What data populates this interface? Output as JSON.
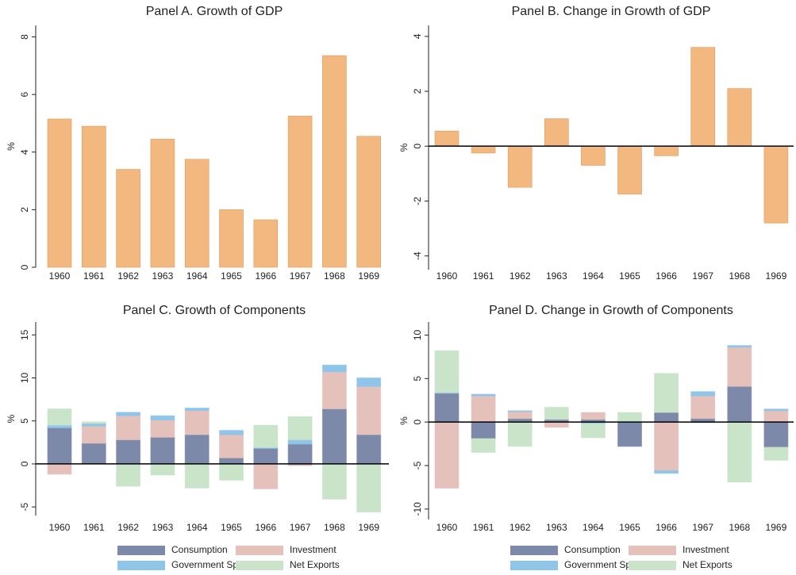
{
  "chart_data": [
    {
      "type": "bar",
      "title": "Panel A. Growth of GDP",
      "ylabel": "%",
      "color": "#f2b880",
      "categories": [
        "1960",
        "1961",
        "1962",
        "1963",
        "1964",
        "1965",
        "1966",
        "1967",
        "1968",
        "1969"
      ],
      "values": [
        5.15,
        4.9,
        3.4,
        4.45,
        3.75,
        2.0,
        1.65,
        5.25,
        7.35,
        4.55
      ],
      "ylim": [
        0,
        8.4
      ],
      "yticks": [
        0,
        2,
        4,
        6,
        8
      ]
    },
    {
      "type": "bar",
      "title": "Panel B. Change in Growth of GDP",
      "ylabel": "%",
      "color": "#f2b880",
      "categories": [
        "1960",
        "1961",
        "1962",
        "1963",
        "1964",
        "1965",
        "1966",
        "1967",
        "1968",
        "1969"
      ],
      "values": [
        0.55,
        -0.25,
        -1.5,
        1.0,
        -0.7,
        -1.75,
        -0.35,
        3.6,
        2.1,
        -2.8
      ],
      "ylim": [
        -4.5,
        4.4
      ],
      "yticks": [
        -4,
        -2,
        0,
        2,
        4
      ]
    },
    {
      "type": "stacked_bar",
      "title": "Panel C. Growth of Components",
      "ylabel": "%",
      "legend": "bottom",
      "categories": [
        "1960",
        "1961",
        "1962",
        "1963",
        "1964",
        "1965",
        "1966",
        "1967",
        "1968",
        "1969"
      ],
      "series": [
        {
          "name": "Consumption",
          "color": "#7d89a8",
          "values": [
            4.2,
            2.4,
            2.8,
            3.1,
            3.4,
            0.7,
            1.8,
            2.3,
            6.4,
            3.4
          ]
        },
        {
          "name": "Investment",
          "color": "#e5c1bc",
          "values": [
            -1.2,
            2.0,
            2.8,
            2.0,
            2.8,
            2.7,
            -2.9,
            -0.2,
            4.3,
            5.6
          ]
        },
        {
          "name": "Government Spending",
          "color": "#90c5ea",
          "values": [
            0.3,
            0.3,
            0.4,
            0.5,
            0.3,
            0.5,
            0.1,
            0.5,
            0.8,
            1.0
          ]
        },
        {
          "name": "Net Exports",
          "color": "#c9e4c8",
          "values": [
            1.9,
            0.2,
            -2.6,
            -1.3,
            -2.8,
            -1.9,
            2.6,
            2.7,
            -4.1,
            -5.6
          ]
        }
      ],
      "ylim": [
        -6,
        16.5
      ],
      "yticks": [
        -5,
        0,
        5,
        10,
        15
      ]
    },
    {
      "type": "stacked_bar",
      "title": "Panel D. Change in Growth of Components",
      "ylabel": "%",
      "legend": "bottom",
      "categories": [
        "1960",
        "1961",
        "1962",
        "1963",
        "1964",
        "1965",
        "1966",
        "1967",
        "1968",
        "1969"
      ],
      "series": [
        {
          "name": "Consumption",
          "color": "#7d89a8",
          "values": [
            3.3,
            -1.9,
            0.4,
            0.3,
            0.3,
            -2.8,
            1.1,
            0.4,
            4.1,
            -2.9
          ]
        },
        {
          "name": "Investment",
          "color": "#e5c1bc",
          "values": [
            -7.6,
            3.0,
            0.8,
            -0.6,
            0.8,
            0,
            -5.6,
            2.6,
            4.5,
            1.3
          ]
        },
        {
          "name": "Government Spending",
          "color": "#90c5ea",
          "values": [
            0.1,
            0.2,
            0.1,
            0,
            -0.2,
            0,
            -0.3,
            0.5,
            0.2,
            0.2
          ]
        },
        {
          "name": "Net Exports",
          "color": "#c9e4c8",
          "values": [
            4.8,
            -1.6,
            -2.8,
            1.4,
            -1.6,
            1.1,
            4.5,
            -0.1,
            -6.9,
            -1.5
          ]
        }
      ],
      "ylim": [
        -11.2,
        11.5
      ],
      "yticks": [
        -10,
        -5,
        0,
        5,
        10
      ]
    }
  ]
}
